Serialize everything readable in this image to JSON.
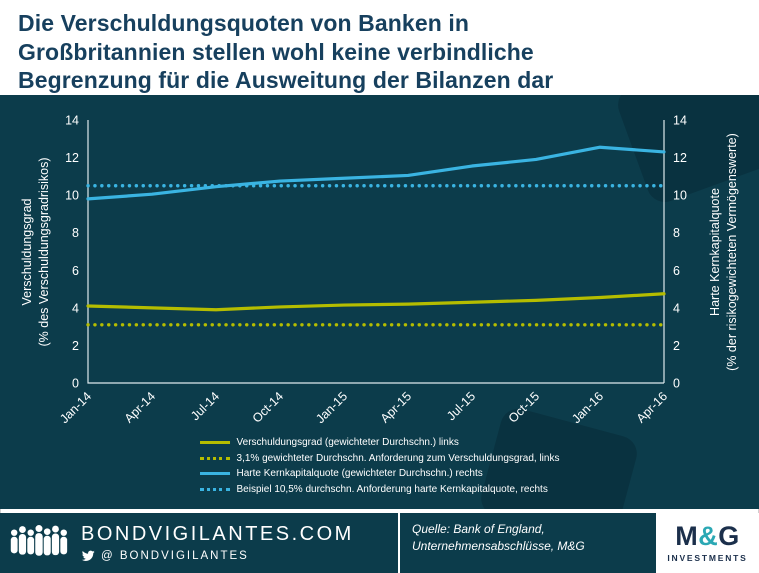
{
  "title_lines": [
    "Die Verschuldungsquoten von Banken in",
    "Großbritannien stellen wohl keine verbindliche",
    "Begrenzung für die Ausweitung der Bilanzen dar"
  ],
  "colors": {
    "title_text": "#17405e",
    "panel_bg": "#0c3c4b",
    "axis_line": "#dde8ec",
    "axis_text": "#ffffff",
    "leverage_yellow": "#b5bd00",
    "capital_blue": "#3ab4e2",
    "mg_navy": "#1b2f4b",
    "mg_teal": "#2ba8b4"
  },
  "axes": {
    "left_title_lines": [
      "Verschuldungsgrad",
      "(% des Verschuldungsgradrisikos)"
    ],
    "right_title_lines": [
      "Harte Kernkapitalquote",
      "(% der risikogewichteten Vermögenswerte)"
    ]
  },
  "chart_data": {
    "type": "line",
    "x": [
      "Jan-14",
      "Apr-14",
      "Jul-14",
      "Oct-14",
      "Jan-15",
      "Apr-15",
      "Jul-15",
      "Oct-15",
      "Jan-16",
      "Apr-16"
    ],
    "ylim": [
      0,
      14
    ],
    "yticks": [
      0,
      2,
      4,
      6,
      8,
      10,
      12,
      14
    ],
    "grid": false,
    "legend_position": "bottom",
    "ylabel_left": "Verschuldungsgrad (% des Verschuldungsgradrisikos)",
    "ylabel_right": "Harte Kernkapitalquote (% der risikogewichteten Vermögenswerte)",
    "series": [
      {
        "name": "Verschuldungsgrad (gewichteter Durchschn.) links",
        "axis": "left",
        "style": "solid",
        "color": "#b5bd00",
        "values": [
          4.1,
          4.0,
          3.9,
          4.05,
          4.15,
          4.2,
          4.3,
          4.4,
          4.55,
          4.75
        ]
      },
      {
        "name": "3,1% gewichteter Durchschn. Anforderung zum Verschuldungsgrad, links",
        "axis": "left",
        "style": "dotted",
        "color": "#b5bd00",
        "values": [
          3.1,
          3.1,
          3.1,
          3.1,
          3.1,
          3.1,
          3.1,
          3.1,
          3.1,
          3.1
        ]
      },
      {
        "name": "Harte Kernkapitalquote (gewichteter Durchschn.) rechts",
        "axis": "right",
        "style": "solid",
        "color": "#3ab4e2",
        "values": [
          9.8,
          10.05,
          10.45,
          10.75,
          10.9,
          11.05,
          11.55,
          11.9,
          12.55,
          12.3
        ]
      },
      {
        "name": "Beispiel 10,5% durchschn. Anforderung harte Kernkapitalquote, rechts",
        "axis": "right",
        "style": "dotted",
        "color": "#3ab4e2",
        "values": [
          10.5,
          10.5,
          10.5,
          10.5,
          10.5,
          10.5,
          10.5,
          10.5,
          10.5,
          10.5
        ]
      }
    ]
  },
  "footer": {
    "site": "BONDVIGILANTES.COM",
    "twitter_handle": "@ BONDVIGILANTES",
    "source_lines": [
      "Quelle: Bank of England,",
      "Unternehmensabschlüsse, M&G"
    ],
    "icons": {
      "crowd": "crowd-people-icon",
      "twitter": "twitter-bird-icon"
    },
    "logo": {
      "m": "M",
      "amp": "&",
      "g": "G",
      "sub": "INVESTMENTS"
    }
  }
}
